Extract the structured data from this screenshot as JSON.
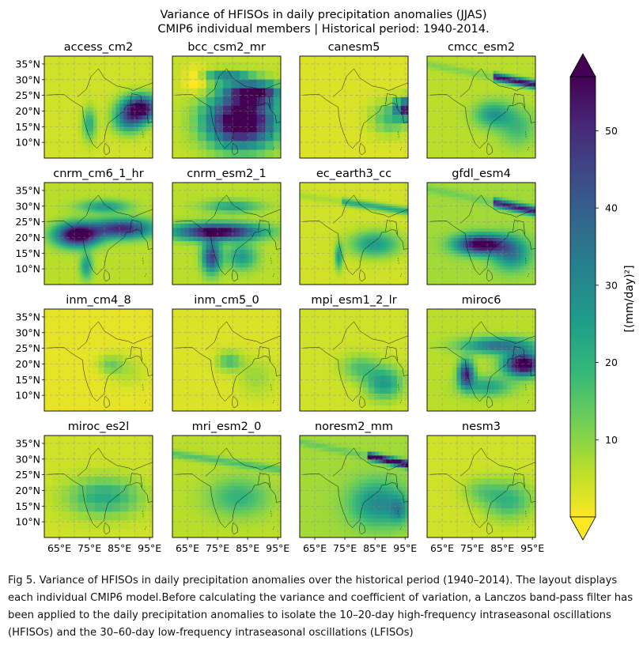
{
  "chart_data": {
    "type": "heatmap",
    "title": "Variance of HFISOs in daily precipitation anomalies (JJAS)",
    "subtitle": "CMIP6 individual members | Historical period: 1940-2014.",
    "x_tick_labels": [
      "65°E",
      "75°E",
      "85°E",
      "95°E"
    ],
    "x_ticks": [
      65,
      75,
      85,
      95
    ],
    "y_tick_labels": [
      "10°N",
      "15°N",
      "20°N",
      "25°N",
      "30°N",
      "35°N"
    ],
    "y_ticks": [
      10,
      15,
      20,
      25,
      30,
      35
    ],
    "xlim": [
      60,
      96
    ],
    "ylim": [
      5,
      37.5
    ],
    "grid": true,
    "colorbar": {
      "label": "[(mm/day)²]",
      "range": [
        0,
        57
      ],
      "ticks": [
        10,
        20,
        30,
        40,
        50
      ],
      "extend": "both",
      "colormap": "viridis_r",
      "colors": [
        "#fde725",
        "#b5de2b",
        "#6ece58",
        "#35b779",
        "#1f9e89",
        "#26828e",
        "#31688e",
        "#3e4989",
        "#482878",
        "#440154"
      ]
    },
    "panels": [
      {
        "name": "access_cm2"
      },
      {
        "name": "bcc_csm2_mr"
      },
      {
        "name": "canesm5"
      },
      {
        "name": "cmcc_esm2"
      },
      {
        "name": "cnrm_cm6_1_hr"
      },
      {
        "name": "cnrm_esm2_1"
      },
      {
        "name": "ec_earth3_cc"
      },
      {
        "name": "gfdl_esm4"
      },
      {
        "name": "inm_cm4_8"
      },
      {
        "name": "inm_cm5_0"
      },
      {
        "name": "mpi_esm1_2_lr"
      },
      {
        "name": "miroc6"
      },
      {
        "name": "miroc_es2l"
      },
      {
        "name": "mri_esm2_0"
      },
      {
        "name": "noresm2_mm"
      },
      {
        "name": "nesm3"
      }
    ]
  },
  "caption": "Fig 5. Variance of HFISOs in daily precipitation anomalies over the historical period (1940–2014). The layout displays each individual CMIP6 model.Before calculating the variance and coefficient of variation, a Lanczos band-pass filter has been applied to the daily precipitation anomalies to isolate the 10–20-day high-frequency intraseasonal oscillations (HFISOs) and the 30–60-day low-frequency intraseasonal oscillations (LFISOs)"
}
